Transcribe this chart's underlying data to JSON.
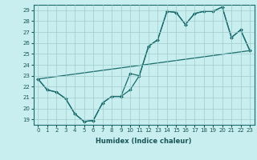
{
  "xlabel": "Humidex (Indice chaleur)",
  "bg_color": "#c8eef0",
  "line_color": "#1a6b6b",
  "xlim": [
    -0.5,
    23.5
  ],
  "ylim": [
    18.5,
    29.5
  ],
  "yticks": [
    19,
    20,
    21,
    22,
    23,
    24,
    25,
    26,
    27,
    28,
    29
  ],
  "xticks": [
    0,
    1,
    2,
    3,
    4,
    5,
    6,
    7,
    8,
    9,
    10,
    11,
    12,
    13,
    14,
    15,
    16,
    17,
    18,
    19,
    20,
    21,
    22,
    23
  ],
  "series1_x": [
    0,
    1,
    2,
    3,
    4,
    5,
    6,
    7,
    8,
    9,
    10,
    11,
    12,
    13,
    14,
    15,
    16,
    17,
    18,
    19,
    20,
    21,
    22,
    23
  ],
  "series1_y": [
    22.7,
    21.7,
    21.5,
    20.9,
    19.5,
    18.8,
    18.9,
    20.5,
    21.1,
    21.1,
    21.7,
    23.0,
    25.7,
    26.3,
    28.9,
    28.8,
    27.7,
    28.7,
    28.9,
    28.9,
    29.3,
    26.5,
    27.2,
    25.3
  ],
  "series2_x": [
    0,
    1,
    2,
    3,
    4,
    5,
    6,
    7,
    8,
    9,
    10,
    11,
    12,
    13,
    14,
    15,
    16,
    17,
    18,
    19,
    20,
    21,
    22,
    23
  ],
  "series2_y": [
    22.7,
    21.7,
    21.5,
    20.9,
    19.5,
    18.8,
    18.9,
    20.5,
    21.1,
    21.1,
    23.2,
    23.0,
    25.7,
    26.3,
    28.9,
    28.8,
    27.7,
    28.7,
    28.9,
    28.9,
    29.3,
    26.5,
    27.2,
    25.3
  ],
  "series3_x": [
    0,
    23
  ],
  "series3_y": [
    22.7,
    25.3
  ]
}
